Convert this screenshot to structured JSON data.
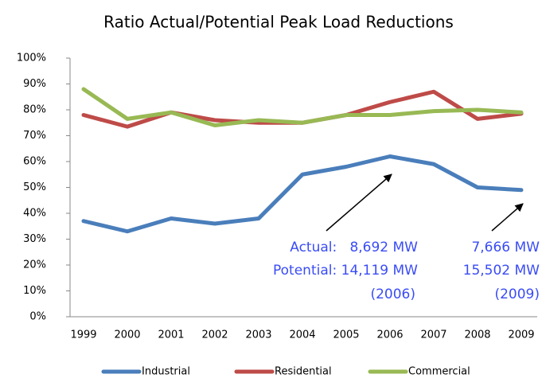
{
  "chart_data": {
    "type": "line",
    "title": "Ratio Actual/Potential Peak Load Reductions",
    "categories": [
      "1999",
      "2000",
      "2001",
      "2002",
      "2003",
      "2004",
      "2005",
      "2006",
      "2007",
      "2008",
      "2009"
    ],
    "series": [
      {
        "name": "Industrial",
        "color": "#4a7ebb",
        "values": [
          37,
          33,
          38,
          36,
          38,
          55,
          58,
          62,
          59,
          50,
          49
        ]
      },
      {
        "name": "Residential",
        "color": "#be4b48",
        "values": [
          78,
          73.5,
          79,
          76,
          75,
          75,
          78,
          83,
          87,
          76.5,
          78.5
        ]
      },
      {
        "name": "Commercial",
        "color": "#98b954",
        "values": [
          88,
          76.5,
          79,
          74,
          76,
          75,
          78,
          78,
          79.5,
          80,
          79
        ]
      }
    ],
    "ylim": [
      0,
      100
    ],
    "yticks": [
      {
        "value": 0,
        "label": "0%"
      },
      {
        "value": 10,
        "label": "10%"
      },
      {
        "value": 20,
        "label": "20%"
      },
      {
        "value": 30,
        "label": "30%"
      },
      {
        "value": 40,
        "label": "40%"
      },
      {
        "value": 50,
        "label": "50%"
      },
      {
        "value": 60,
        "label": "60%"
      },
      {
        "value": 70,
        "label": "70%"
      },
      {
        "value": 80,
        "label": "80%"
      },
      {
        "value": 90,
        "label": "90%"
      },
      {
        "value": 100,
        "label": "100%"
      }
    ],
    "grid": false,
    "legend": "bottom",
    "annotations": [
      "Actual:   8,692 MW",
      "Potential: 14,119 MW",
      "(2006)",
      "7,666 MW",
      "15,502 MW",
      "(2009)"
    ]
  }
}
